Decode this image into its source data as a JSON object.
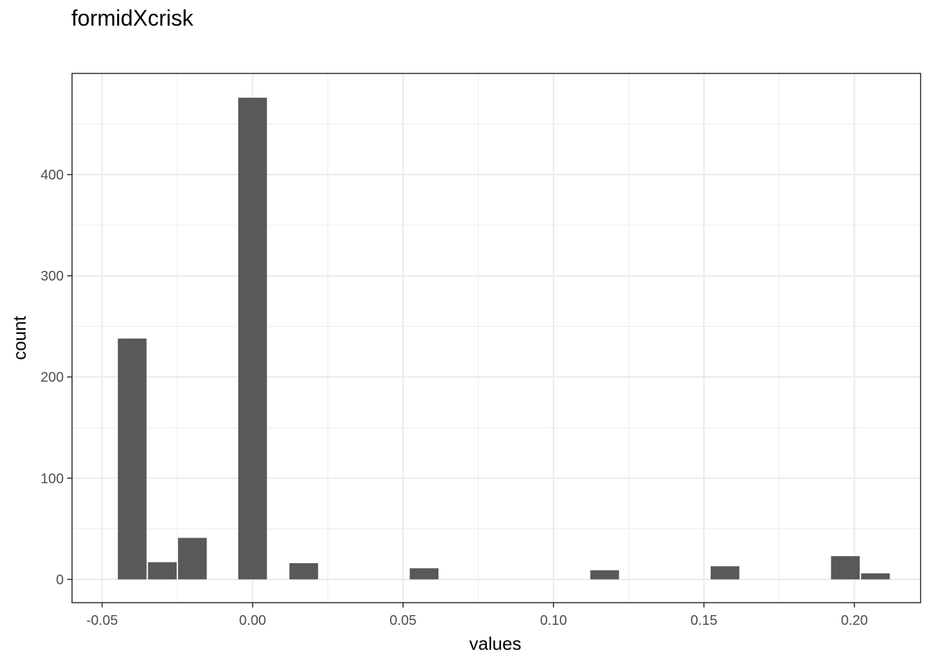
{
  "chart_data": {
    "type": "bar",
    "title": "formidXcrisk",
    "xlabel": "values",
    "ylabel": "count",
    "xlim": [
      -0.06,
      0.222
    ],
    "ylim": [
      -23,
      500
    ],
    "x_ticks": [
      -0.05,
      0.0,
      0.05,
      0.1,
      0.15,
      0.2
    ],
    "x_tick_labels": [
      "-0.05",
      "0.00",
      "0.05",
      "0.10",
      "0.15",
      "0.20"
    ],
    "y_ticks": [
      0,
      100,
      200,
      300,
      400
    ],
    "y_tick_labels": [
      "0",
      "100",
      "200",
      "300",
      "400"
    ],
    "bin_width": 0.01,
    "bins": [
      {
        "x": -0.04,
        "count": 238
      },
      {
        "x": -0.03,
        "count": 17
      },
      {
        "x": -0.02,
        "count": 41
      },
      {
        "x": 0.0,
        "count": 476
      },
      {
        "x": 0.017,
        "count": 16
      },
      {
        "x": 0.057,
        "count": 11
      },
      {
        "x": 0.117,
        "count": 9
      },
      {
        "x": 0.157,
        "count": 13
      },
      {
        "x": 0.197,
        "count": 23
      },
      {
        "x": 0.207,
        "count": 6
      }
    ],
    "grid": true,
    "bar_color": "#595959",
    "grid_color": "#ebebeb",
    "panel_border_color": "#333333"
  }
}
